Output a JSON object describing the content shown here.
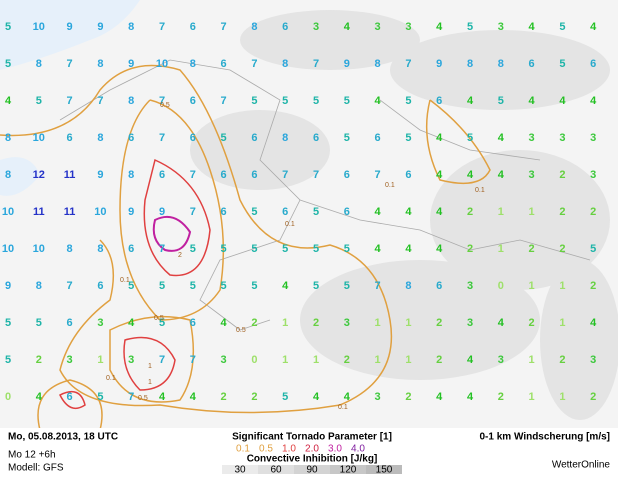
{
  "map": {
    "grid": {
      "rows": [
        [
          5,
          10,
          9,
          9,
          8,
          7,
          6,
          7,
          8,
          6,
          3,
          4,
          3,
          3,
          4,
          5,
          3,
          4,
          5,
          4
        ],
        [
          5,
          8,
          7,
          8,
          9,
          10,
          8,
          6,
          7,
          8,
          7,
          9,
          8,
          7,
          9,
          8,
          8,
          6,
          5,
          6
        ],
        [
          4,
          5,
          7,
          7,
          8,
          7,
          6,
          7,
          5,
          5,
          5,
          5,
          4,
          5,
          6,
          4,
          5,
          4,
          4,
          4
        ],
        [
          8,
          10,
          6,
          8,
          6,
          7,
          6,
          5,
          6,
          8,
          6,
          5,
          6,
          5,
          4,
          5,
          4,
          3,
          3,
          3
        ],
        [
          8,
          12,
          11,
          9,
          8,
          6,
          7,
          6,
          6,
          7,
          7,
          6,
          7,
          6,
          4,
          4,
          4,
          3,
          2,
          3
        ],
        [
          10,
          11,
          11,
          10,
          9,
          9,
          7,
          6,
          5,
          6,
          5,
          6,
          4,
          4,
          4,
          2,
          1,
          1,
          2,
          2
        ],
        [
          10,
          10,
          8,
          8,
          6,
          7,
          5,
          5,
          5,
          5,
          5,
          5,
          4,
          4,
          4,
          2,
          1,
          2,
          2,
          5
        ],
        [
          9,
          8,
          7,
          6,
          5,
          5,
          5,
          5,
          5,
          4,
          5,
          5,
          7,
          8,
          6,
          3,
          0,
          1,
          1,
          2
        ],
        [
          5,
          5,
          6,
          3,
          4,
          5,
          6,
          4,
          2,
          1,
          2,
          3,
          1,
          1,
          2,
          3,
          4,
          2,
          1,
          4
        ],
        [
          5,
          2,
          3,
          1,
          3,
          7,
          7,
          3,
          0,
          1,
          1,
          2,
          1,
          1,
          2,
          4,
          3,
          1,
          2,
          3
        ],
        [
          0,
          4,
          6,
          5,
          7,
          4,
          4,
          2,
          2,
          5,
          4,
          4,
          3,
          2,
          4,
          4,
          2,
          1,
          1,
          2
        ]
      ]
    },
    "number_colors": [
      "#9ee06a",
      "#9ee06a",
      "#66d040",
      "#3cc83c",
      "#22c022",
      "#1eb4a8",
      "#28aacc",
      "#28aacc",
      "#2aa6dc",
      "#2aa6dc",
      "#2aa6dc",
      "#2432c8",
      "#2432c8"
    ],
    "contour_labels": [
      "0.5",
      "0.1",
      "0.1",
      "0.1",
      "1",
      "2",
      "0.1",
      "0.5",
      "0.5",
      "1",
      "0.5",
      "0.1",
      "0.1"
    ],
    "footer": {
      "date": "Mo, 05.08.2013, 18 UTC",
      "run": "Mo 12 +6h",
      "model": "Modell: GFS",
      "stp_title": "Significant Tornado Parameter [1]",
      "stp_levels": [
        {
          "label": "0.1",
          "color": "#e0a040"
        },
        {
          "label": "0.5",
          "color": "#e0a040"
        },
        {
          "label": "1.0",
          "color": "#e04040"
        },
        {
          "label": "2.0",
          "color": "#d02040"
        },
        {
          "label": "3.0",
          "color": "#c020a0"
        },
        {
          "label": "4.0",
          "color": "#8020a0"
        }
      ],
      "cin_title": "Convective Inhibition [J/kg]",
      "cin_ticks": [
        30,
        60,
        90,
        120,
        150
      ],
      "shear_title": "0-1 km Windscherung [m/s]",
      "brand": "WetterOnline"
    }
  }
}
